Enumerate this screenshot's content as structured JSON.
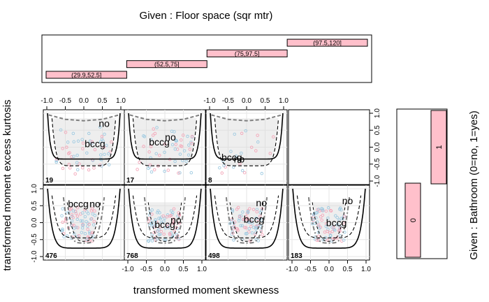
{
  "chart_data": {
    "type": "scatter",
    "title": "Given : Floor space (sqr mtr)",
    "xlabel": "transformed moment skewness",
    "ylabel": "transformed moment excess kurtosis",
    "right_label": "Given : Bathroom (0=no, 1=yes)",
    "xlim": [
      -1.0,
      1.0
    ],
    "ylim": [
      -1.0,
      1.0
    ],
    "x_ticks": [
      "-1.0",
      "-0.5",
      "0.0",
      "0.5",
      "1.0"
    ],
    "y_ticks": [
      "-1.0",
      "-0.5",
      "0.0",
      "0.5",
      "1.0"
    ],
    "grid": true,
    "floor_intervals": [
      "(29.9,52.5]",
      "(52.5,75]",
      "(75,97.5]",
      "(97.5,120]"
    ],
    "bathroom_levels": [
      "0",
      "1"
    ],
    "colors": {
      "bar_fill": "#ffc0cb",
      "point_blue": "#9ecae1",
      "point_pink": "#f4a6b8",
      "band_grey": "#d9d9d9",
      "curve": "#000000",
      "dashed_curve": "#7f7f7f"
    },
    "region_labels": [
      "no",
      "bccg"
    ],
    "panels": [
      {
        "floor": "(29.9,52.5]",
        "bathroom": "1",
        "n": "19",
        "no_pos": [
          0.55,
          0.6
        ],
        "bccg_pos": [
          0.3,
          0.0
        ]
      },
      {
        "floor": "(52.5,75]",
        "bathroom": "1",
        "n": "17",
        "no_pos": [
          0.15,
          0.2
        ],
        "bccg_pos": [
          -0.15,
          0.05
        ]
      },
      {
        "floor": "(75,97.5]",
        "bathroom": "1",
        "n": "8",
        "no_pos": [
          -0.2,
          -0.45
        ],
        "bccg_pos": [
          -0.4,
          -0.4
        ]
      },
      {
        "floor": "(97.5,120]",
        "bathroom": "1",
        "n": "",
        "empty": true
      },
      {
        "floor": "(29.9,52.5]",
        "bathroom": "0",
        "n": "476",
        "no_pos": [
          0.3,
          0.45
        ],
        "bccg_pos": [
          -0.15,
          0.45
        ]
      },
      {
        "floor": "(52.5,75]",
        "bathroom": "0",
        "n": "768",
        "no_pos": [
          0.3,
          -0.02
        ],
        "bccg_pos": [
          0.0,
          -0.15
        ]
      },
      {
        "floor": "(75,97.5]",
        "bathroom": "0",
        "n": "498",
        "no_pos": [
          0.4,
          0.48
        ],
        "bccg_pos": [
          0.2,
          0.0
        ]
      },
      {
        "floor": "(97.5,120]",
        "bathroom": "0",
        "n": "183",
        "no_pos": [
          0.5,
          0.55
        ],
        "bccg_pos": [
          0.2,
          -0.1
        ]
      }
    ]
  }
}
